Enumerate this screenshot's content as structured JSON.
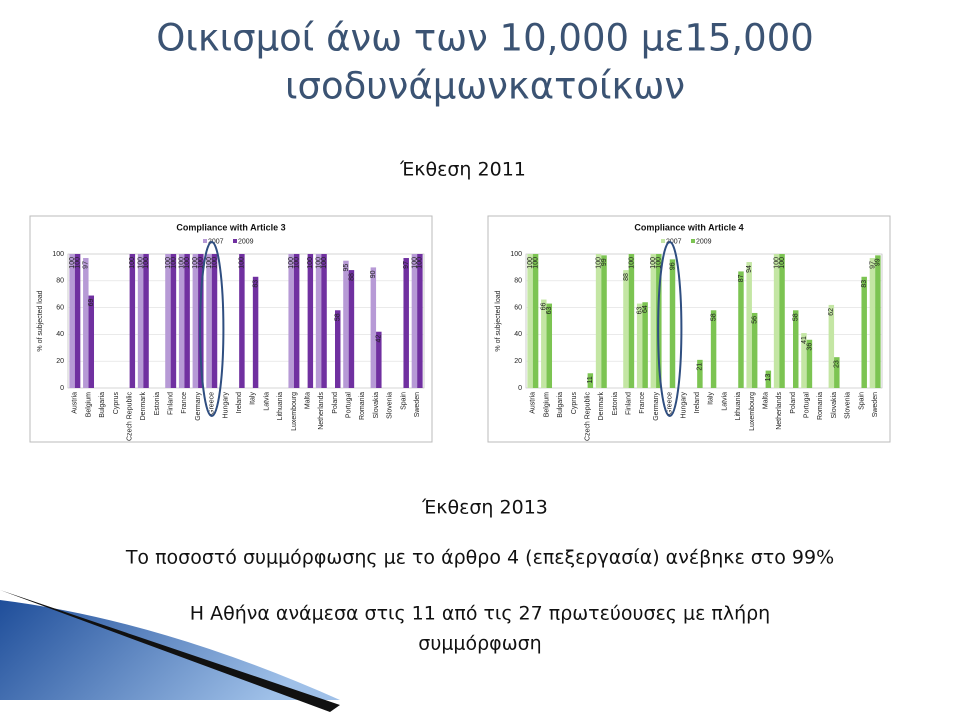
{
  "slide": {
    "title": [
      "Οικισμοί άνω των 10,000 με15,000",
      "ισοδυνάμωνκατοίκων"
    ],
    "report_2011": "Έκθεση 2011",
    "report_2013": "Έκθεση 2013",
    "lines": [
      "Το ποσοστό συμμόρφωσης με το άρθρο 4 (επεξεργασία) ανέβηκε στο 99%",
      "Η Αθήνα ανάμεσα στις 11 από τις 27 πρωτεύουσες με πλήρη",
      "συμμόρφωση"
    ]
  },
  "chart_data": [
    {
      "type": "bar",
      "title": "Compliance with Article 3",
      "ylabel": "% of subjected load",
      "categories": [
        "Austria",
        "Belgium",
        "Bulgaria",
        "Cyprus",
        "Czech Republic",
        "Denmark",
        "Estonia",
        "Finland",
        "France",
        "Germany",
        "Greece",
        "Hungary",
        "Ireland",
        "Italy",
        "Latvia",
        "Lithuania",
        "Luxembourg",
        "Malta",
        "Netherlands",
        "Poland",
        "Portugal",
        "Romania",
        "Slovakia",
        "Slovenia",
        "Spain",
        "Sweden"
      ],
      "series": [
        {
          "name": "2007",
          "color": "#b79ad6",
          "values": [
            100,
            97,
            0,
            0,
            0,
            100,
            0,
            100,
            100,
            100,
            100,
            0,
            0,
            0,
            0,
            0,
            100,
            0,
            100,
            0,
            95,
            0,
            90,
            0,
            0,
            100
          ]
        },
        {
          "name": "2009",
          "color": "#7030a0",
          "values": [
            100,
            69,
            0,
            0,
            100,
            100,
            0,
            100,
            100,
            100,
            100,
            0,
            100,
            83,
            0,
            0,
            100,
            100,
            100,
            58,
            88,
            0,
            42,
            0,
            97,
            100
          ]
        }
      ],
      "ylim": [
        0,
        100
      ],
      "yticks": [
        0,
        20,
        40,
        60,
        80,
        100
      ],
      "grid": true
    },
    {
      "type": "bar",
      "title": "Compliance with Article 4",
      "ylabel": "% of subjected load",
      "categories": [
        "Austria",
        "Belgium",
        "Bulgaria",
        "Cyprus",
        "Czech Republic",
        "Denmark",
        "Estonia",
        "Finland",
        "France",
        "Germany",
        "Greece",
        "Hungary",
        "Ireland",
        "Italy",
        "Latvia",
        "Lithuania",
        "Luxembourg",
        "Malta",
        "Netherlands",
        "Poland",
        "Portugal",
        "Romania",
        "Slovakia",
        "Slovenia",
        "Spain",
        "Sweden"
      ],
      "series": [
        {
          "name": "2007",
          "color": "#c4e6a4",
          "values": [
            100,
            66,
            0,
            0,
            0,
            100,
            0,
            88,
            63,
            100,
            0,
            0,
            0,
            0,
            0,
            0,
            94,
            0,
            100,
            0,
            41,
            0,
            62,
            0,
            0,
            97
          ]
        },
        {
          "name": "2009",
          "color": "#7cc452",
          "values": [
            100,
            63,
            0,
            0,
            11,
            99,
            0,
            100,
            64,
            100,
            96,
            0,
            21,
            58,
            0,
            87,
            56,
            13,
            100,
            58,
            36,
            0,
            23,
            0,
            83,
            99
          ]
        }
      ],
      "ylim": [
        0,
        100
      ],
      "yticks": [
        0,
        20,
        40,
        60,
        80,
        100
      ],
      "grid": true
    }
  ]
}
